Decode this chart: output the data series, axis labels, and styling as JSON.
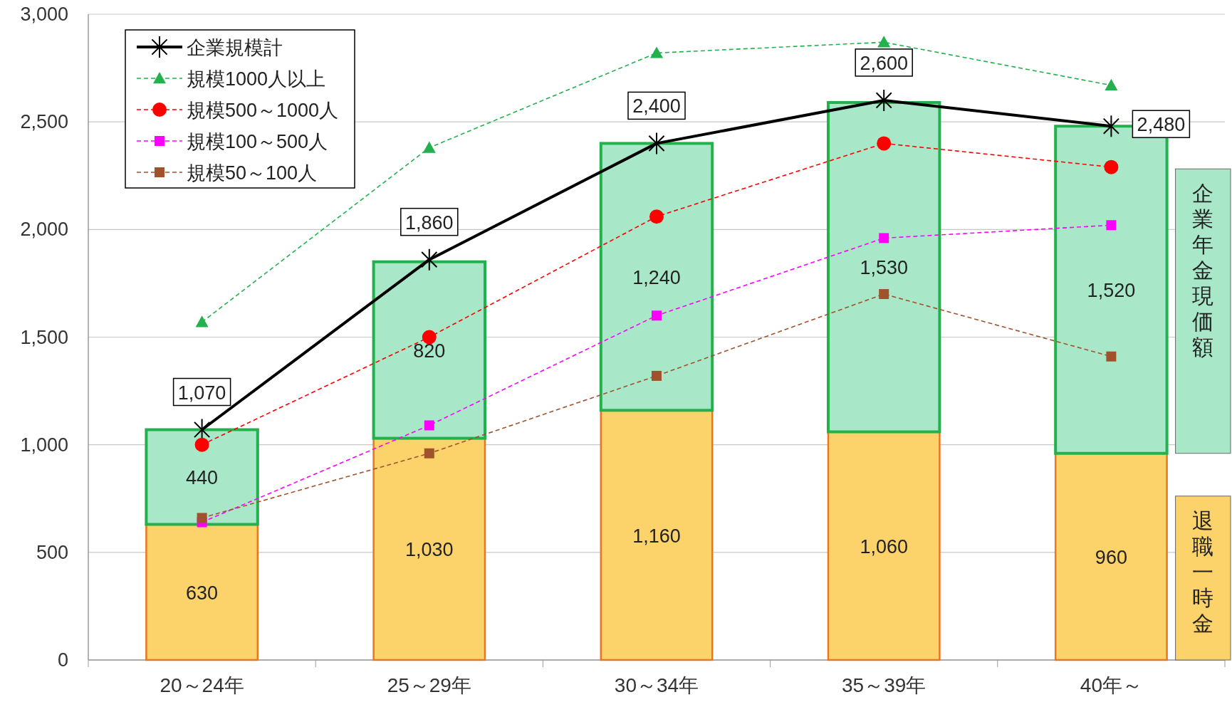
{
  "chart_data": {
    "type": "bar",
    "stacked": true,
    "categories": [
      "20～24年",
      "25～29年",
      "30～34年",
      "35～39年",
      "40年～"
    ],
    "ylim": [
      0,
      3000
    ],
    "yticks": [
      0,
      500,
      {
        "value": 1000,
        "label": "1,000"
      },
      {
        "value": 1500,
        "label": "1,500"
      },
      {
        "value": 2000,
        "label": "2,000"
      },
      {
        "value": 2500,
        "label": "2,500"
      },
      {
        "value": 3000,
        "label": "3,000"
      }
    ],
    "grid": "y",
    "legend": "top left",
    "series": [
      {
        "name": "退職一時金",
        "color": "#fcd36a",
        "values": [
          630,
          1030,
          1160,
          1060,
          960
        ],
        "value_labels": [
          "630",
          "1,030",
          "1,160",
          "1,060",
          "960"
        ]
      },
      {
        "name": "企業年金現価額",
        "color": "#a8e8c8",
        "values": [
          440,
          820,
          1240,
          1530,
          1520
        ],
        "value_labels": [
          "440",
          "820",
          "1,240",
          "1,530",
          "1,520"
        ]
      },
      {
        "type": "line",
        "name": "企業規模計",
        "color": "#000000",
        "marker": "cross",
        "line_style": "solid",
        "values": [
          1070,
          1860,
          2400,
          2600,
          2480
        ],
        "value_labels": [
          "1,070",
          "1,860",
          "2,400",
          "2,600",
          "2,480"
        ]
      },
      {
        "type": "line",
        "name": "規模1000人以上",
        "color": "#22b14c",
        "marker": "triangle",
        "line_style": "dashed",
        "values": [
          1570,
          2380,
          2820,
          2870,
          2670
        ]
      },
      {
        "type": "line",
        "name": "規模500～1000人",
        "color": "#ff0000",
        "marker": "circle",
        "line_style": "dashed",
        "values": [
          1000,
          1500,
          2060,
          2400,
          2290
        ]
      },
      {
        "type": "line",
        "name": "規模100～500人",
        "color": "#ff00ff",
        "marker": "square",
        "line_style": "dashed",
        "values": [
          640,
          1090,
          1600,
          1960,
          2020
        ]
      },
      {
        "type": "line",
        "name": "規模50～100人",
        "color": "#a0522d",
        "marker": "square",
        "line_style": "dashed",
        "values": [
          660,
          960,
          1320,
          1700,
          1410
        ]
      }
    ]
  }
}
